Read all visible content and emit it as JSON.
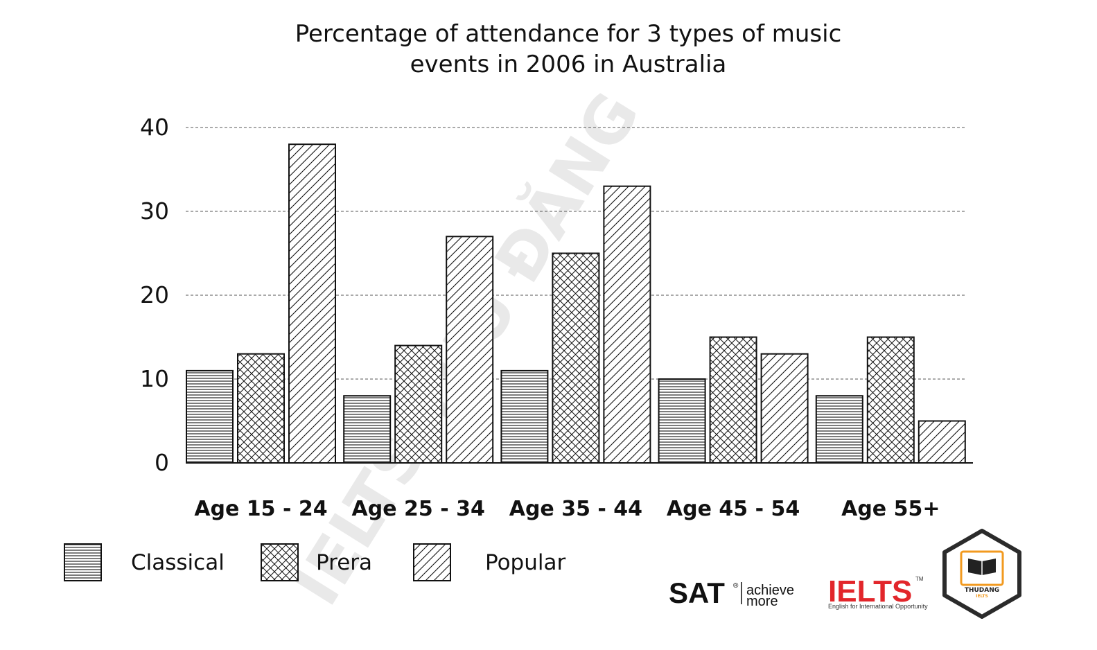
{
  "chart_data": {
    "type": "bar",
    "title_lines": [
      "Percentage of attendance for 3 types of music",
      "events in 2006 in Australia"
    ],
    "categories": [
      "Age 15 - 24",
      "Age 25 - 34",
      "Age 35 - 44",
      "Age 45 - 54",
      "Age 55+"
    ],
    "series": [
      {
        "name": "Classical",
        "pattern": "horizontal-lines",
        "values": [
          11,
          8,
          11,
          10,
          8
        ]
      },
      {
        "name": "Prera",
        "pattern": "crosshatch",
        "values": [
          13,
          14,
          25,
          15,
          15
        ]
      },
      {
        "name": "Popular",
        "pattern": "diagonal-lines",
        "values": [
          38,
          27,
          33,
          13,
          5
        ]
      }
    ],
    "ylim": [
      0,
      40
    ],
    "yticks": [
      0,
      10,
      20,
      30,
      40
    ],
    "ytick_labels": [
      "0",
      "10",
      "20",
      "30",
      "40"
    ],
    "grid": "dashed horizontal",
    "legend_position": "bottom-left"
  },
  "watermark": {
    "text": "IELTS THU ĐĂNG"
  },
  "logos": {
    "sat": {
      "name": "SAT",
      "registered": "®",
      "tagline_1": "achieve",
      "tagline_2": "more"
    },
    "ielts": {
      "name": "IELTS",
      "trademark": "TM",
      "subtitle": "English for International Opportunity"
    },
    "badge": {
      "name": "THUDANG",
      "sub": "IELTS",
      "border_color": "#2b2b2b",
      "accent_color": "#f29a1f"
    }
  },
  "colors": {
    "stroke": "#111111",
    "grid": "#555555",
    "background": "#ffffff"
  }
}
